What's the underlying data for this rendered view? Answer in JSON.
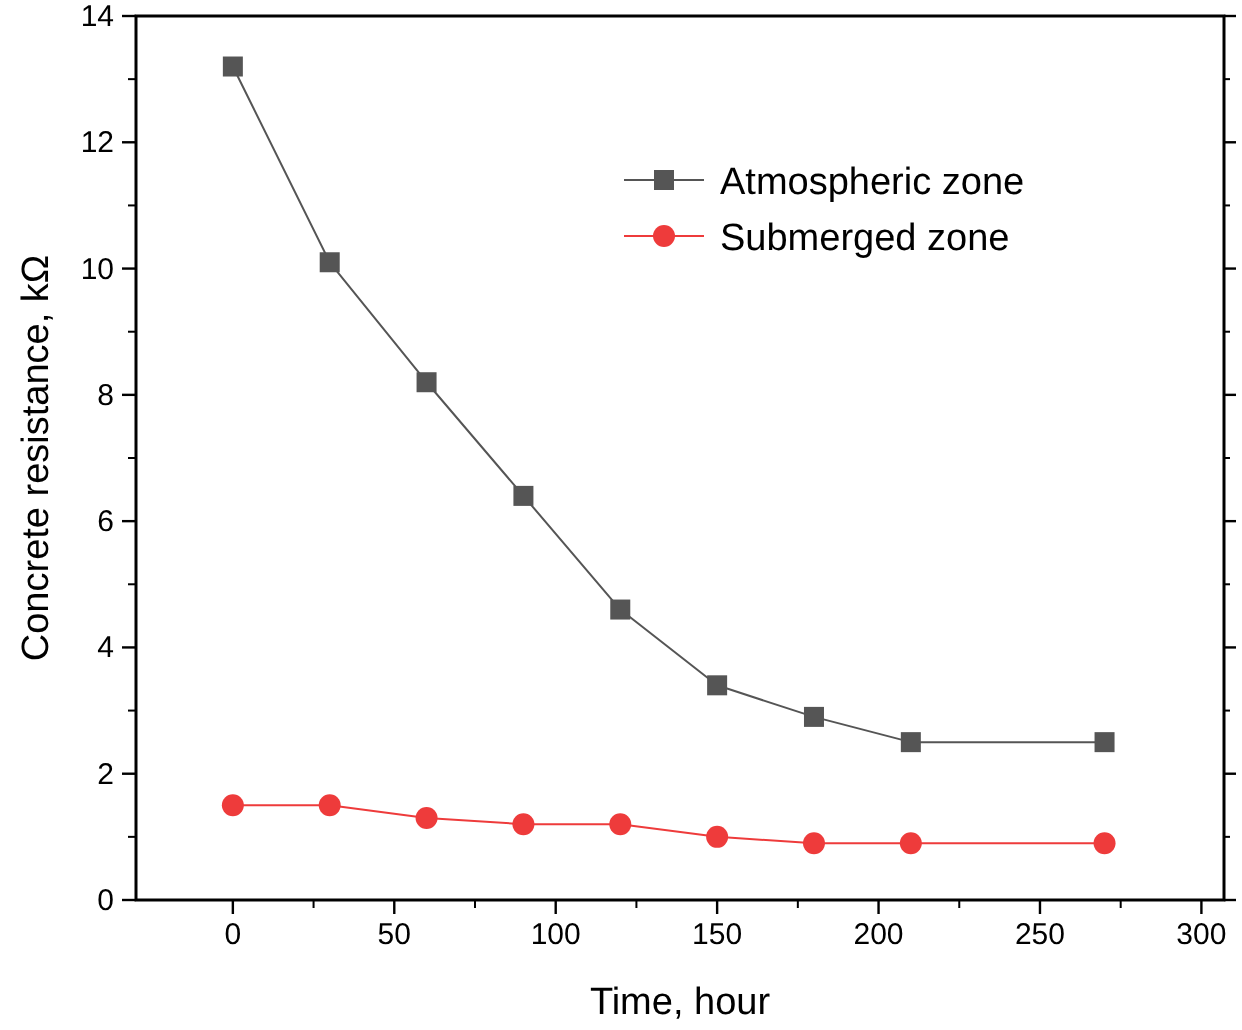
{
  "chart_data": {
    "type": "line",
    "xlabel": "Time, hour",
    "ylabel": "Concrete resistance, kΩ",
    "x": [
      0,
      30,
      60,
      90,
      120,
      150,
      180,
      210,
      270
    ],
    "series": [
      {
        "name": "Atmospheric zone",
        "color": "#555555",
        "marker": "square",
        "values": [
          13.2,
          10.1,
          8.2,
          6.4,
          4.6,
          3.4,
          2.9,
          2.5,
          2.5
        ]
      },
      {
        "name": "Submerged zone",
        "color": "#ee3b3b",
        "marker": "circle",
        "values": [
          1.5,
          1.5,
          1.3,
          1.2,
          1.2,
          1.0,
          0.9,
          0.9,
          0.9
        ]
      }
    ],
    "xlim": [
      -30,
      307
    ],
    "xticks": [
      0,
      50,
      100,
      150,
      200,
      250,
      300
    ],
    "ylim": [
      0,
      14
    ],
    "yticks": [
      0,
      2,
      4,
      6,
      8,
      10,
      12,
      14
    ],
    "legend": "top right",
    "grid": false
  }
}
